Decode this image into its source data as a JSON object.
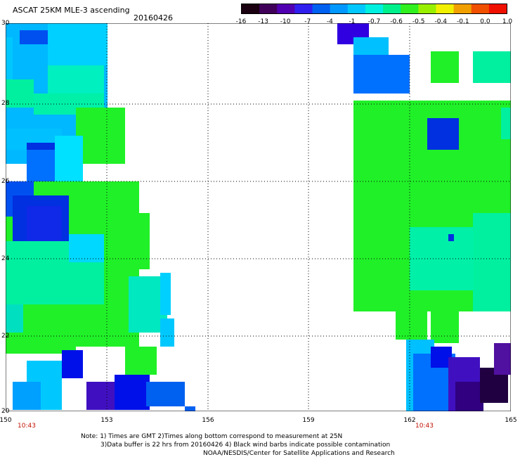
{
  "header": {
    "title": "ASCAT 25KM MLE-3 ascending",
    "date": "20160426"
  },
  "colorbar": {
    "labels": [
      "-16",
      "-13",
      "-10",
      "-7",
      "-4",
      "-1",
      "-0.7",
      "-0.6",
      "-0.5",
      "-0.4",
      "-0.1",
      "0.0",
      "1.0"
    ],
    "colors": [
      "#1a0010",
      "#40005a",
      "#5000b0",
      "#3020f0",
      "#0060f0",
      "#0098ff",
      "#00c8ff",
      "#00f0e0",
      "#00f08c",
      "#30f020",
      "#98f000",
      "#f0f000",
      "#f0a000",
      "#f05000",
      "#f01000"
    ]
  },
  "map": {
    "lat_ticks": [
      "30",
      "28",
      "26",
      "24",
      "22",
      "20"
    ],
    "lon_ticks": [
      "150",
      "153",
      "156",
      "159",
      "162",
      "165"
    ],
    "time_labels": [
      "10:43",
      "10:43"
    ]
  },
  "notes": {
    "line1": "Note: 1) Times are GMT 2)Times along bottom correspond to measurement at 25N",
    "line2": "3)Data buffer is 22 hrs from 20160426 4) Black wind barbs indicate possible contamination",
    "line3": "NOAA/NESDIS/Center for Satellite Applications and Research"
  }
}
